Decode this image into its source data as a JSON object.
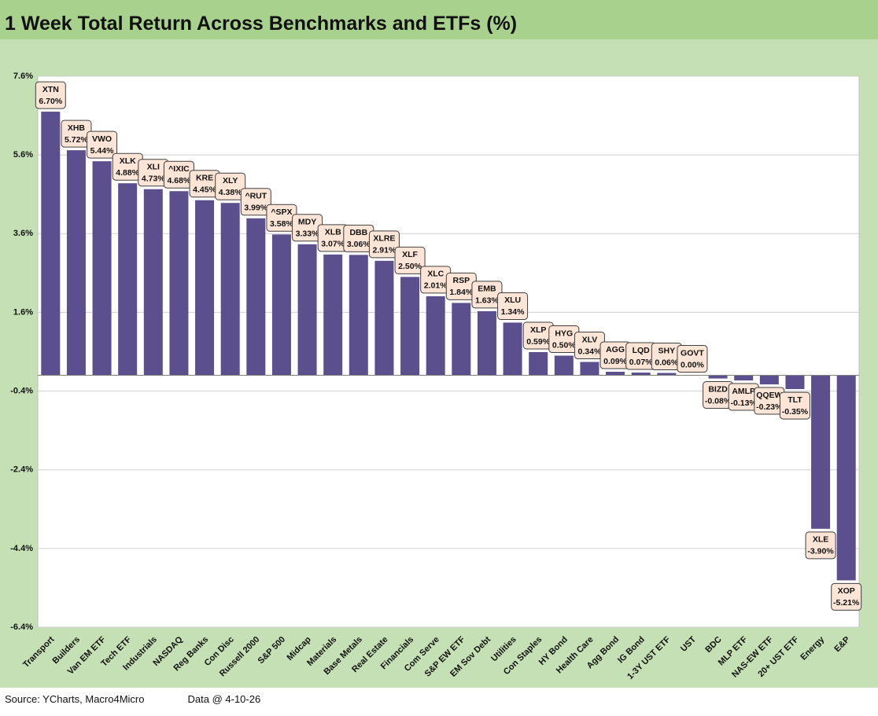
{
  "chart_data": {
    "type": "bar",
    "title": "1 Week Total Return Across Benchmarks and ETFs (%)",
    "source": "Source: YCharts, Macro4Micro",
    "data_date": "Data @ 4-10-26",
    "categories": [
      "Transport",
      "Builders",
      "Van EM ETF",
      "Tech ETF",
      "Industrials",
      "NASDAQ",
      "Reg Banks",
      "Con Disc",
      "Russell 2000",
      "S&P 500",
      "Midcap",
      "Materials",
      "Base Metals",
      "Real Estate",
      "Financials",
      "Com Serve",
      "S&P EW ETF",
      "EM Sov Debt",
      "Utilities",
      "Con Staples",
      "HY Bond",
      "Health Care",
      "Agg Bond",
      "IG Bond",
      "1-3Y UST ETF",
      "UST",
      "BDC",
      "MLP ETF",
      "NAS-EW ETF",
      "20+ UST ETF",
      "Energy",
      "E&P"
    ],
    "tickers": [
      "XTN",
      "XHB",
      "VWO",
      "XLK",
      "XLI",
      "^IXIC",
      "KRE",
      "XLY",
      "^RUT",
      "^SPX",
      "MDY",
      "XLB",
      "DBB",
      "XLRE",
      "XLF",
      "XLC",
      "RSP",
      "EMB",
      "XLU",
      "XLP",
      "HYG",
      "XLV",
      "AGG",
      "LQD",
      "SHY",
      "GOVT",
      "BIZD",
      "AMLP",
      "QQEW",
      "TLT",
      "XLE",
      "XOP"
    ],
    "values": [
      6.7,
      5.72,
      5.44,
      4.88,
      4.73,
      4.68,
      4.45,
      4.38,
      3.99,
      3.58,
      3.33,
      3.07,
      3.06,
      2.91,
      2.5,
      2.01,
      1.84,
      1.63,
      1.34,
      0.59,
      0.5,
      0.34,
      0.09,
      0.07,
      0.06,
      0.0,
      -0.08,
      -0.13,
      -0.23,
      -0.35,
      -3.9,
      -5.21
    ],
    "value_labels": [
      "6.70%",
      "5.72%",
      "5.44%",
      "4.88%",
      "4.73%",
      "4.68%",
      "4.45%",
      "4.38%",
      "3.99%",
      "3.58%",
      "3.33%",
      "3.07%",
      "3.06%",
      "2.91%",
      "2.50%",
      "2.01%",
      "1.84%",
      "1.63%",
      "1.34%",
      "0.59%",
      "0.50%",
      "0.34%",
      "0.09%",
      "0.07%",
      "0.06%",
      "0.00%",
      "-0.08%",
      "-0.13%",
      "-0.23%",
      "-0.35%",
      "-3.90%",
      "-5.21%"
    ],
    "color": "#5b4f8e",
    "ylim": [
      -6.4,
      7.6
    ],
    "yticks": [
      {
        "value": -6.4,
        "label": "-6.4%"
      },
      {
        "value": -4.4,
        "label": "-4.4%"
      },
      {
        "value": -2.4,
        "label": "-2.4%"
      },
      {
        "value": -0.4,
        "label": "-0.4%"
      },
      {
        "value": 1.6,
        "label": "1.6%"
      },
      {
        "value": 3.6,
        "label": "3.6%"
      },
      {
        "value": 5.6,
        "label": "5.6%"
      },
      {
        "value": 7.6,
        "label": "7.6%"
      }
    ],
    "grid": true
  }
}
